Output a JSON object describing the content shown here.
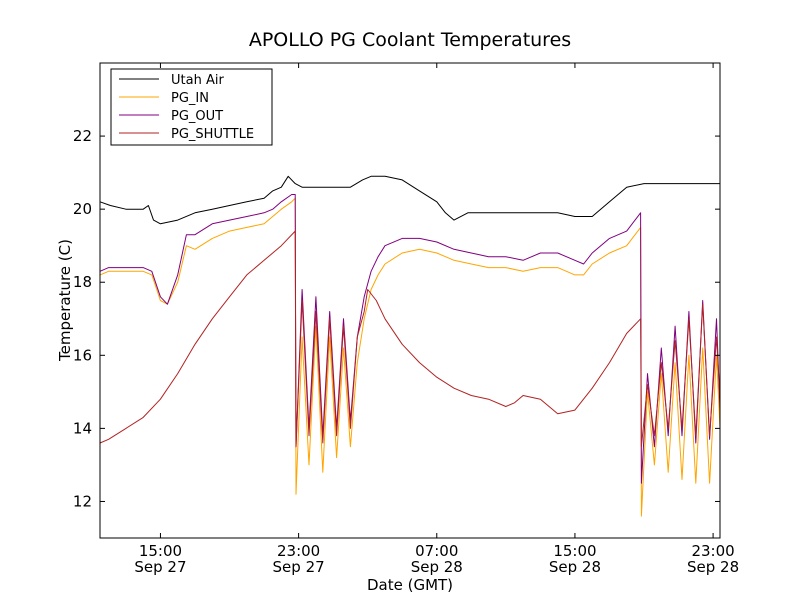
{
  "chart_data": {
    "type": "line",
    "title": "APOLLO PG Coolant Temperatures",
    "xlabel": "Date (GMT)",
    "ylabel": "Temperature (C)",
    "xlim": [
      11.5,
      47.4
    ],
    "ylim": [
      11,
      24
    ],
    "x_unit": "hours since 00:00 Sep 27 (GMT)",
    "grid": false,
    "legend_position": "top-left",
    "yticks": [
      {
        "value": 12,
        "label": "12"
      },
      {
        "value": 14,
        "label": "14"
      },
      {
        "value": 16,
        "label": "16"
      },
      {
        "value": 18,
        "label": "18"
      },
      {
        "value": 20,
        "label": "20"
      },
      {
        "value": 22,
        "label": "22"
      }
    ],
    "xticks": [
      {
        "value": 15,
        "time": "15:00",
        "date": "Sep 27"
      },
      {
        "value": 23,
        "time": "23:00",
        "date": "Sep 27"
      },
      {
        "value": 31,
        "time": "07:00",
        "date": "Sep 28"
      },
      {
        "value": 39,
        "time": "15:00",
        "date": "Sep 28"
      },
      {
        "value": 47,
        "time": "23:00",
        "date": "Sep 28"
      }
    ],
    "series": [
      {
        "name": "Utah Air",
        "color": "#000000",
        "x": [
          11.5,
          12.1,
          13.0,
          14.0,
          14.3,
          14.6,
          15.0,
          16.0,
          17.0,
          18.0,
          19.0,
          20.0,
          21.0,
          21.5,
          22.0,
          22.4,
          22.8,
          23.2,
          24.0,
          25.0,
          26.0,
          26.7,
          27.2,
          28.0,
          29.0,
          30.0,
          31.0,
          31.5,
          32.0,
          32.8,
          34.0,
          35.0,
          36.0,
          37.0,
          38.0,
          39.0,
          40.0,
          41.0,
          42.0,
          43.0,
          44.0,
          45.0,
          46.0,
          47.0,
          47.4
        ],
        "y": [
          20.2,
          20.1,
          20.0,
          20.0,
          20.1,
          19.7,
          19.6,
          19.7,
          19.9,
          20.0,
          20.1,
          20.2,
          20.3,
          20.5,
          20.6,
          20.9,
          20.7,
          20.6,
          20.6,
          20.6,
          20.6,
          20.8,
          20.9,
          20.9,
          20.8,
          20.5,
          20.2,
          19.9,
          19.7,
          19.9,
          19.9,
          19.9,
          19.9,
          19.9,
          19.9,
          19.8,
          19.8,
          20.2,
          20.6,
          20.7,
          20.7,
          20.7,
          20.7,
          20.7,
          20.7
        ]
      },
      {
        "name": "PG_IN",
        "color": "#ffa500",
        "x": [
          11.5,
          12.0,
          13.0,
          14.0,
          14.5,
          15.0,
          15.4,
          16.0,
          16.5,
          17.0,
          18.0,
          19.0,
          20.0,
          21.0,
          21.5,
          22.0,
          22.6,
          22.8,
          22.85,
          23.2,
          23.6,
          24.0,
          24.4,
          24.8,
          25.2,
          25.6,
          26.0,
          26.4,
          26.8,
          27.2,
          27.6,
          28.0,
          29.0,
          30.0,
          31.0,
          32.0,
          33.0,
          34.0,
          35.0,
          36.0,
          37.0,
          38.0,
          39.0,
          39.5,
          40.0,
          41.0,
          42.0,
          42.8,
          42.85,
          43.2,
          43.6,
          44.0,
          44.4,
          44.8,
          45.2,
          45.6,
          46.0,
          46.4,
          46.8,
          47.2,
          47.4
        ],
        "y": [
          18.2,
          18.3,
          18.3,
          18.3,
          18.2,
          17.5,
          17.4,
          18.0,
          19.0,
          18.9,
          19.2,
          19.4,
          19.5,
          19.6,
          19.8,
          20.0,
          20.2,
          20.3,
          12.2,
          16.5,
          13.0,
          16.8,
          12.8,
          16.5,
          13.2,
          16.2,
          13.5,
          15.8,
          17.0,
          17.8,
          18.2,
          18.5,
          18.8,
          18.9,
          18.8,
          18.6,
          18.5,
          18.4,
          18.4,
          18.3,
          18.4,
          18.4,
          18.2,
          18.2,
          18.5,
          18.8,
          19.0,
          19.5,
          11.6,
          15.0,
          13.0,
          15.5,
          12.8,
          15.8,
          12.6,
          16.0,
          12.5,
          16.2,
          12.5,
          16.0,
          14.0
        ]
      },
      {
        "name": "PG_OUT",
        "color": "#800080",
        "x": [
          11.5,
          12.0,
          13.0,
          14.0,
          14.5,
          15.0,
          15.4,
          16.0,
          16.5,
          17.0,
          18.0,
          19.0,
          20.0,
          21.0,
          21.5,
          22.0,
          22.6,
          22.8,
          22.85,
          23.2,
          23.6,
          24.0,
          24.4,
          24.8,
          25.2,
          25.6,
          26.0,
          26.4,
          26.8,
          27.2,
          27.6,
          28.0,
          29.0,
          30.0,
          31.0,
          32.0,
          33.0,
          34.0,
          35.0,
          36.0,
          37.0,
          38.0,
          39.0,
          39.5,
          40.0,
          41.0,
          42.0,
          42.8,
          42.85,
          43.2,
          43.6,
          44.0,
          44.4,
          44.8,
          45.2,
          45.6,
          46.0,
          46.4,
          46.8,
          47.2,
          47.4
        ],
        "y": [
          18.3,
          18.4,
          18.4,
          18.4,
          18.3,
          17.6,
          17.4,
          18.2,
          19.3,
          19.3,
          19.6,
          19.7,
          19.8,
          19.9,
          20.0,
          20.2,
          20.4,
          20.4,
          13.5,
          17.8,
          14.0,
          17.6,
          13.8,
          17.2,
          14.0,
          17.0,
          14.2,
          16.5,
          17.6,
          18.3,
          18.7,
          19.0,
          19.2,
          19.2,
          19.1,
          18.9,
          18.8,
          18.7,
          18.7,
          18.6,
          18.8,
          18.8,
          18.6,
          18.5,
          18.8,
          19.2,
          19.4,
          19.9,
          12.5,
          15.5,
          13.5,
          16.2,
          13.8,
          16.8,
          13.8,
          17.2,
          13.6,
          17.5,
          13.7,
          17.0,
          14.5
        ]
      },
      {
        "name": "PG_SHUTTLE",
        "color": "#b22222",
        "x": [
          11.5,
          12.0,
          13.0,
          14.0,
          15.0,
          16.0,
          17.0,
          18.0,
          19.0,
          20.0,
          21.0,
          22.0,
          22.8,
          22.85,
          23.2,
          23.6,
          24.0,
          24.4,
          24.8,
          25.2,
          25.6,
          26.0,
          26.4,
          26.8,
          27.0,
          27.5,
          28.0,
          29.0,
          30.0,
          31.0,
          32.0,
          33.0,
          34.0,
          35.0,
          35.5,
          36.0,
          37.0,
          38.0,
          39.0,
          40.0,
          41.0,
          42.0,
          42.8,
          42.85,
          43.2,
          43.6,
          44.0,
          44.4,
          44.8,
          45.2,
          45.6,
          46.0,
          46.4,
          46.8,
          47.2,
          47.4
        ],
        "y": [
          13.6,
          13.7,
          14.0,
          14.3,
          14.8,
          15.5,
          16.3,
          17.0,
          17.6,
          18.2,
          18.6,
          19.0,
          19.4,
          13.5,
          17.5,
          13.8,
          17.2,
          13.6,
          17.0,
          13.8,
          16.8,
          14.0,
          16.5,
          17.2,
          17.8,
          17.5,
          17.0,
          16.3,
          15.8,
          15.4,
          15.1,
          14.9,
          14.8,
          14.6,
          14.7,
          14.9,
          14.8,
          14.4,
          14.5,
          15.1,
          15.8,
          16.6,
          17.0,
          13.5,
          15.2,
          13.8,
          15.8,
          14.0,
          16.4,
          14.0,
          17.0,
          13.8,
          17.4,
          13.8,
          16.5,
          14.8
        ]
      }
    ]
  }
}
